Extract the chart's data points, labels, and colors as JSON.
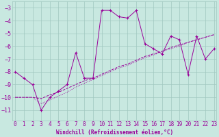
{
  "xlabel": "Windchill (Refroidissement éolien,°C)",
  "bg_color": "#c8e8e0",
  "grid_color": "#a0c8c0",
  "line_color": "#990099",
  "x": [
    0,
    1,
    2,
    3,
    4,
    5,
    6,
    7,
    8,
    9,
    10,
    11,
    12,
    13,
    14,
    15,
    16,
    17,
    18,
    19,
    20,
    21,
    22,
    23
  ],
  "jagged_y": [
    -8.0,
    -8.5,
    -9.0,
    -11.0,
    -10.0,
    -9.5,
    -9.0,
    -6.5,
    -8.5,
    -8.5,
    -3.2,
    -3.2,
    -3.7,
    -3.8,
    -3.2,
    -5.8,
    -6.2,
    -6.6,
    -5.2,
    -5.5,
    -8.2,
    -5.2,
    -7.0,
    -6.2
  ],
  "trend1_y": [
    -10.0,
    -10.0,
    -10.0,
    -10.1,
    -9.8,
    -9.6,
    -9.3,
    -9.0,
    -8.7,
    -8.5,
    -8.2,
    -7.9,
    -7.6,
    -7.4,
    -7.1,
    -6.8,
    -6.6,
    -6.4,
    -6.1,
    -5.9,
    -5.7,
    -5.5,
    -5.3,
    -5.1
  ],
  "trend2_y": [
    -10.0,
    -10.0,
    -10.0,
    -10.5,
    -10.2,
    -9.9,
    -9.6,
    -9.2,
    -8.9,
    -8.6,
    -8.3,
    -8.0,
    -7.7,
    -7.5,
    -7.2,
    -6.9,
    -6.7,
    -6.4,
    -6.2,
    -6.0,
    -5.7,
    -5.5,
    -5.3,
    -5.1
  ],
  "ylim": [
    -11.8,
    -2.5
  ],
  "xlim": [
    -0.3,
    23.3
  ],
  "yticks": [
    -11,
    -10,
    -9,
    -8,
    -7,
    -6,
    -5,
    -4,
    -3
  ],
  "xticks": [
    0,
    1,
    2,
    3,
    4,
    5,
    6,
    7,
    8,
    9,
    10,
    11,
    12,
    13,
    14,
    15,
    16,
    17,
    18,
    19,
    20,
    21,
    22,
    23
  ],
  "xlabel_fontsize": 5.5,
  "tick_fontsize": 5.5
}
